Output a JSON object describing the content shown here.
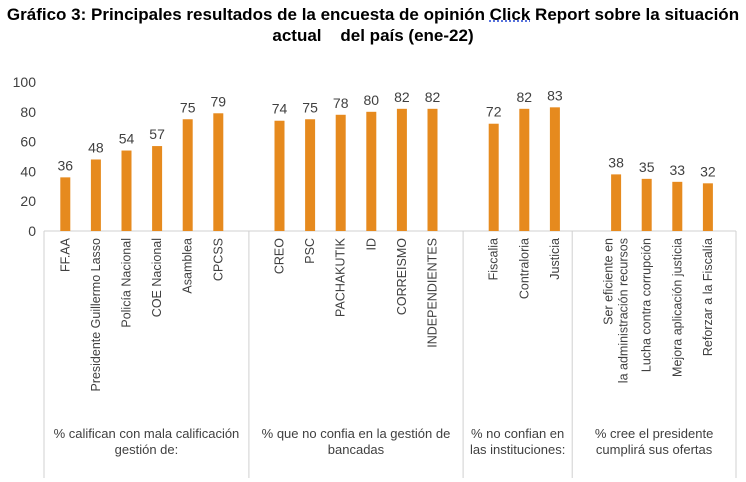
{
  "title_line1": "Gráfico 3: Principales resultados de la encuesta de opinión Click Report sobre la situación",
  "title_line2": "actual    del país (ene-22)",
  "title_click_word": "Click",
  "chart_data": {
    "type": "bar",
    "title": "Gráfico 3: Principales resultados de la encuesta de opinión Click Report sobre la situación actual del país (ene-22)",
    "ylim": [
      0,
      100
    ],
    "yticks": [
      0,
      20,
      40,
      60,
      80,
      100
    ],
    "bar_color": "#e68a1e",
    "groups": [
      {
        "label": "% califican con mala calificación gestión de:",
        "categories": [
          "FF.AA",
          "Presidente Guillermo Lasso",
          "Policía Nacional",
          "COE Nacional",
          "Asamblea",
          "CPCSS"
        ],
        "values": [
          36,
          48,
          54,
          57,
          75,
          79
        ]
      },
      {
        "label": "% que no confia en la gestión de bancadas",
        "categories": [
          "CREO",
          "PSC",
          "PACHAKUTIK",
          "ID",
          "CORREISMO",
          "INDEPENDIENTES"
        ],
        "values": [
          74,
          75,
          78,
          80,
          82,
          82
        ]
      },
      {
        "label": "% no confian en las instituciones:",
        "categories": [
          "Fiscalia",
          "Contraloria",
          "Justicia"
        ],
        "values": [
          72,
          82,
          83
        ]
      },
      {
        "label": "%  cree el presidente cumplirá sus ofertas",
        "categories": [
          "Ser eficiente en la administración recursos",
          "Lucha contra corrupción",
          "Mejora aplicación justicia",
          "Reforzar a la Fiscalía"
        ],
        "values": [
          38,
          35,
          33,
          32
        ]
      }
    ]
  }
}
